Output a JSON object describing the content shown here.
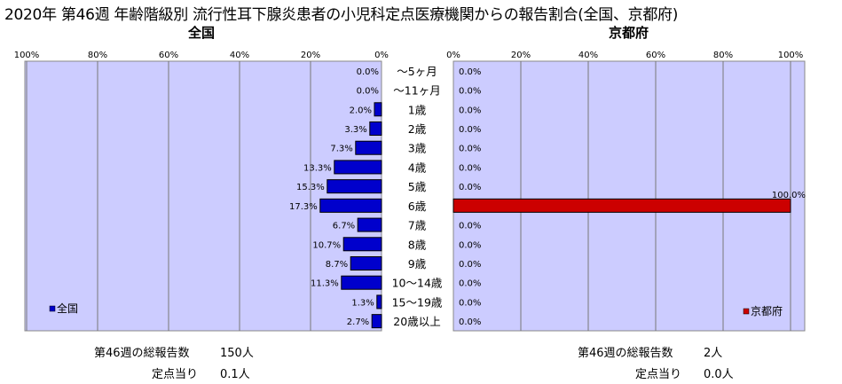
{
  "title": "2020年 第46週 年齢階級別 流行性耳下腺炎患者の小児科定点医療機関からの報告割合(全国、京都府)",
  "left_subtitle": "全国",
  "right_subtitle": "京都府",
  "left_stats": {
    "total_label": "第46週の総報告数",
    "total_value": "150人",
    "per_label": "定点当り",
    "per_value": "0.1人"
  },
  "right_stats": {
    "total_label": "第46週の総報告数",
    "total_value": "2人",
    "per_label": "定点当り",
    "per_value": "0.0人"
  },
  "colors": {
    "plot_bg": "#ccccff",
    "national_bar": "#0000cc",
    "kyoto_bar": "#cc0000",
    "grid": "#777777"
  },
  "chart_data": [
    {
      "type": "bar",
      "orientation": "horizontal-reversed",
      "categories": [
        "～5ヶ月",
        "～11ヶ月",
        "1歳",
        "2歳",
        "3歳",
        "4歳",
        "5歳",
        "6歳",
        "7歳",
        "8歳",
        "9歳",
        "10～14歳",
        "15～19歳",
        "20歳以上"
      ],
      "series": [
        {
          "name": "全国",
          "values": [
            0.0,
            0.0,
            2.0,
            3.3,
            7.3,
            13.3,
            15.3,
            17.3,
            6.7,
            10.7,
            8.7,
            11.3,
            1.3,
            2.7
          ]
        }
      ],
      "value_labels": [
        "0.0%",
        "0.0%",
        "2.0%",
        "3.3%",
        "7.3%",
        "13.3%",
        "15.3%",
        "17.3%",
        "6.7%",
        "10.7%",
        "8.7%",
        "11.3%",
        "1.3%",
        "2.7%"
      ],
      "xlim": [
        0,
        100
      ],
      "xticks": [
        "100%",
        "80%",
        "60%",
        "40%",
        "20%",
        "0%"
      ],
      "legend": "bottom-left",
      "grid": true
    },
    {
      "type": "bar",
      "orientation": "horizontal",
      "categories": [
        "～5ヶ月",
        "～11ヶ月",
        "1歳",
        "2歳",
        "3歳",
        "4歳",
        "5歳",
        "6歳",
        "7歳",
        "8歳",
        "9歳",
        "10～14歳",
        "15～19歳",
        "20歳以上"
      ],
      "series": [
        {
          "name": "京都府",
          "values": [
            0,
            0,
            0,
            0,
            0,
            0,
            0,
            100,
            0,
            0,
            0,
            0,
            0,
            0
          ]
        }
      ],
      "value_labels": [
        "0.0%",
        "0.0%",
        "0.0%",
        "0.0%",
        "0.0%",
        "0.0%",
        "0.0%",
        "100.0%",
        "0.0%",
        "0.0%",
        "0.0%",
        "0.0%",
        "0.0%",
        "0.0%"
      ],
      "xlim": [
        0,
        100
      ],
      "xticks": [
        "0%",
        "20%",
        "40%",
        "60%",
        "80%",
        "100%"
      ],
      "legend": "bottom-right",
      "grid": true
    }
  ]
}
